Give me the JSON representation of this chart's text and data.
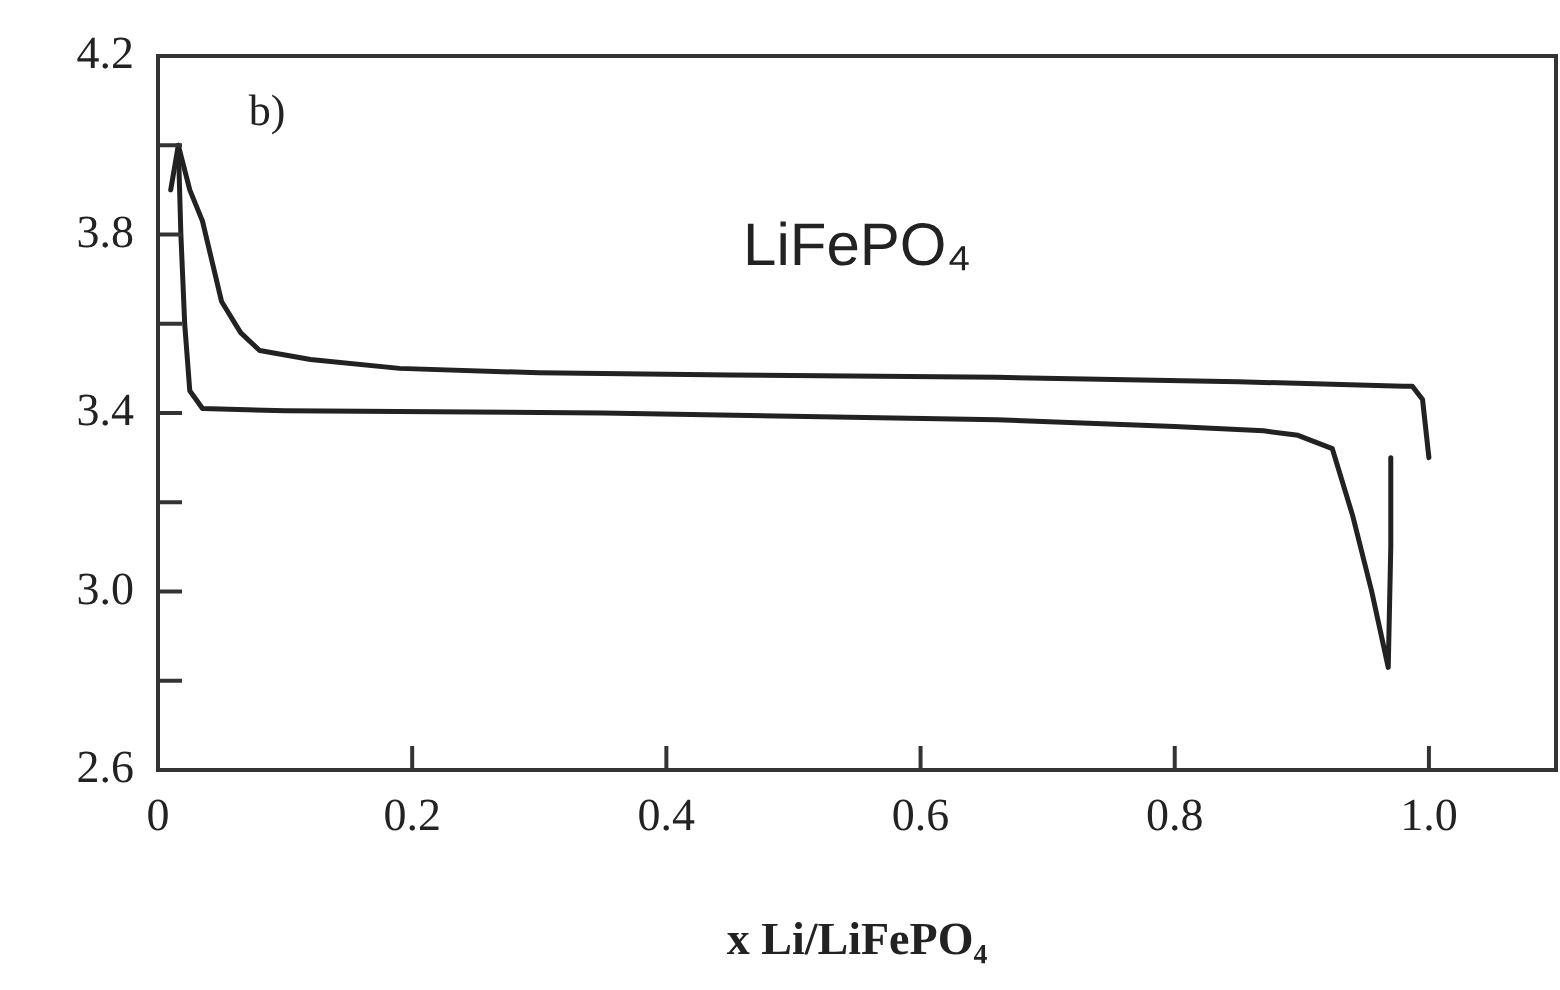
{
  "chart_data": {
    "type": "line",
    "xlabel": "x Li/LiFePO₄",
    "annotations": [
      "b)",
      "LiFePO₄"
    ],
    "xlim": [
      0,
      1.1
    ],
    "xticks": [
      0,
      0.2,
      0.4,
      0.6,
      0.8,
      {
        "value": 1.0,
        "label": "1.0"
      }
    ],
    "ylim": [
      2.6,
      4.2
    ],
    "yticks": [
      {
        "value": 2.6,
        "label": "2.6"
      },
      {
        "value": 2.8,
        "label": null
      },
      {
        "value": 3.0,
        "label": "3.0"
      },
      {
        "value": 3.2,
        "label": null
      },
      {
        "value": 3.4,
        "label": "3.4"
      },
      {
        "value": 3.6,
        "label": null
      },
      {
        "value": 3.8,
        "label": "3.8"
      },
      {
        "value": 4.0,
        "label": null
      },
      {
        "value": 4.2,
        "label": "4.2"
      }
    ],
    "grid": false,
    "legend": false,
    "marker": "none",
    "line_style": "solid",
    "series": [
      {
        "color": "#222222",
        "x": [
          0.01,
          0.016,
          0.025,
          0.035,
          0.05,
          0.065,
          0.08,
          0.12,
          0.19,
          0.3,
          0.45,
          0.66,
          0.85,
          0.98,
          0.987,
          0.995,
          1.0
        ],
        "values": [
          3.9,
          4.0,
          3.9,
          3.83,
          3.65,
          3.58,
          3.54,
          3.52,
          3.5,
          3.49,
          3.485,
          3.48,
          3.47,
          3.46,
          3.46,
          3.43,
          3.3
        ]
      },
      {
        "color": "#222222",
        "x": [
          0.016,
          0.018,
          0.021,
          0.025,
          0.035,
          0.1,
          0.35,
          0.66,
          0.8,
          0.87,
          0.897,
          0.924,
          0.94,
          0.955,
          0.968,
          0.97,
          0.97
        ],
        "values": [
          4.0,
          3.8,
          3.6,
          3.45,
          3.41,
          3.405,
          3.4,
          3.385,
          3.37,
          3.36,
          3.35,
          3.32,
          3.17,
          3.0,
          2.83,
          3.1,
          3.3
        ]
      }
    ]
  }
}
